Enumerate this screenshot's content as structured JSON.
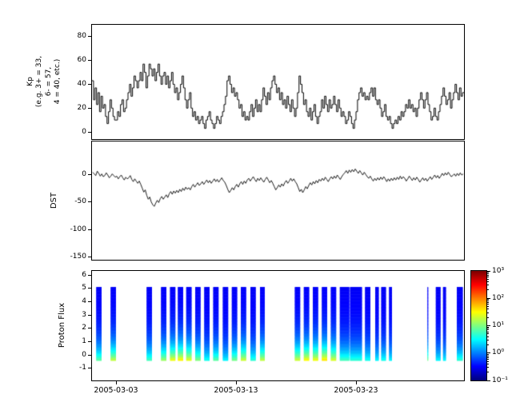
{
  "figure": {
    "background": "#ffffff",
    "line_color": "#000000"
  },
  "panels": {
    "kp": {
      "ylabel": "Kp\n(e.g. 3+ = 33,\n6- = 57,\n4 = 40, etc.)",
      "yticks": [
        80,
        60,
        40,
        20,
        0
      ],
      "ylim": [
        -6,
        90
      ]
    },
    "dst": {
      "ylabel": "DST",
      "yticks": [
        0,
        -50,
        -100,
        -150
      ],
      "ylim": [
        -155,
        60
      ]
    },
    "proton": {
      "ylabel": "Proton Flux",
      "yticks": [
        6,
        5,
        4,
        3,
        2,
        1,
        0,
        -1
      ],
      "ylim": [
        -1.9,
        6.3
      ]
    }
  },
  "xaxis": {
    "tick_days": [
      2,
      12,
      22
    ],
    "tick_labels": [
      "2005-03-03",
      "2005-03-13",
      "2005-03-23"
    ],
    "day_range": [
      0,
      31
    ],
    "epoch_label_style": "YYYY-MM-DD"
  },
  "colorbar": {
    "tick_exponents": [
      3,
      2,
      1,
      0,
      -1
    ],
    "tick_labels": [
      "10³",
      "10²",
      "10¹",
      "10⁰",
      "10⁻¹"
    ],
    "log_range": [
      -1,
      3
    ],
    "colormap": "jet"
  },
  "chart_data": [
    {
      "type": "line",
      "name": "Kp index",
      "style": "steps",
      "x_start_day": 0,
      "x_step_days": 0.125,
      "ylim": [
        -6,
        90
      ],
      "values": [
        43,
        27,
        37,
        23,
        33,
        17,
        30,
        20,
        23,
        13,
        7,
        17,
        27,
        20,
        13,
        10,
        10,
        17,
        13,
        23,
        27,
        17,
        20,
        27,
        33,
        40,
        30,
        37,
        47,
        43,
        37,
        43,
        50,
        43,
        57,
        50,
        37,
        47,
        57,
        53,
        47,
        53,
        43,
        50,
        57,
        47,
        40,
        47,
        50,
        40,
        47,
        37,
        43,
        50,
        40,
        33,
        37,
        27,
        33,
        40,
        47,
        37,
        27,
        20,
        27,
        33,
        20,
        13,
        17,
        10,
        13,
        7,
        10,
        13,
        7,
        3,
        10,
        13,
        17,
        10,
        7,
        3,
        7,
        13,
        10,
        7,
        13,
        17,
        23,
        30,
        43,
        47,
        40,
        33,
        37,
        30,
        33,
        27,
        20,
        23,
        13,
        17,
        10,
        13,
        10,
        17,
        23,
        13,
        20,
        27,
        17,
        23,
        17,
        27,
        37,
        30,
        23,
        33,
        27,
        37,
        43,
        47,
        40,
        33,
        37,
        27,
        33,
        23,
        27,
        20,
        30,
        23,
        17,
        27,
        20,
        13,
        20,
        33,
        47,
        40,
        33,
        23,
        27,
        17,
        13,
        20,
        10,
        17,
        23,
        13,
        7,
        13,
        17,
        27,
        20,
        30,
        23,
        17,
        27,
        20,
        23,
        30,
        23,
        17,
        27,
        20,
        13,
        17,
        13,
        7,
        10,
        17,
        13,
        7,
        3,
        10,
        17,
        27,
        33,
        37,
        30,
        33,
        27,
        30,
        27,
        33,
        37,
        30,
        37,
        27,
        23,
        27,
        20,
        13,
        17,
        23,
        13,
        10,
        13,
        7,
        3,
        7,
        10,
        7,
        13,
        10,
        17,
        13,
        17,
        23,
        20,
        27,
        20,
        23,
        17,
        20,
        13,
        20,
        27,
        33,
        27,
        20,
        27,
        33,
        23,
        17,
        10,
        13,
        20,
        13,
        10,
        17,
        23,
        30,
        37,
        30,
        23,
        27,
        33,
        20,
        27,
        33,
        40,
        33,
        27,
        37,
        30,
        33
      ]
    },
    {
      "type": "line",
      "name": "DST",
      "style": "line",
      "x_start_day": 0,
      "x_step_days": 0.125,
      "ylim": [
        -155,
        60
      ],
      "values": [
        4,
        1,
        -2,
        6,
        2,
        -3,
        1,
        -4,
        -2,
        3,
        -1,
        -6,
        -3,
        1,
        -2,
        -5,
        -3,
        -8,
        -4,
        -1,
        -6,
        -10,
        -5,
        -8,
        -6,
        -2,
        -9,
        -13,
        -8,
        -12,
        -16,
        -12,
        -18,
        -25,
        -32,
        -28,
        -38,
        -45,
        -41,
        -50,
        -55,
        -58,
        -52,
        -47,
        -51,
        -44,
        -40,
        -45,
        -41,
        -37,
        -42,
        -35,
        -31,
        -36,
        -30,
        -34,
        -29,
        -33,
        -27,
        -31,
        -25,
        -29,
        -23,
        -27,
        -24,
        -28,
        -22,
        -18,
        -23,
        -19,
        -15,
        -20,
        -17,
        -13,
        -18,
        -14,
        -10,
        -15,
        -11,
        -16,
        -12,
        -8,
        -13,
        -9,
        -14,
        -10,
        -6,
        -11,
        -14,
        -20,
        -27,
        -33,
        -29,
        -24,
        -28,
        -22,
        -18,
        -23,
        -17,
        -13,
        -18,
        -12,
        -16,
        -10,
        -7,
        -12,
        -8,
        -4,
        -9,
        -13,
        -7,
        -11,
        -6,
        -10,
        -14,
        -9,
        -5,
        -10,
        -15,
        -11,
        -16,
        -22,
        -28,
        -24,
        -19,
        -23,
        -17,
        -21,
        -15,
        -11,
        -16,
        -12,
        -7,
        -12,
        -8,
        -13,
        -17,
        -24,
        -31,
        -27,
        -33,
        -28,
        -22,
        -26,
        -20,
        -15,
        -19,
        -13,
        -17,
        -11,
        -15,
        -9,
        -12,
        -7,
        -11,
        -5,
        -9,
        -13,
        -8,
        -4,
        -8,
        -3,
        -7,
        -1,
        -5,
        -9,
        -4,
        0,
        3,
        7,
        2,
        8,
        4,
        9,
        5,
        10,
        6,
        2,
        7,
        3,
        -1,
        4,
        0,
        -4,
        -7,
        -3,
        -8,
        -12,
        -7,
        -11,
        -6,
        -10,
        -5,
        -9,
        -4,
        -8,
        -13,
        -8,
        -12,
        -7,
        -11,
        -6,
        -10,
        -5,
        -9,
        -3,
        -8,
        -4,
        -7,
        -12,
        -8,
        -3,
        -7,
        -11,
        -6,
        -10,
        -5,
        -9,
        -14,
        -10,
        -6,
        -11,
        -7,
        -12,
        -8,
        -4,
        -9,
        -5,
        -1,
        -6,
        -2,
        -7,
        -3,
        2,
        -2,
        3,
        -1,
        4,
        0,
        -4,
        -2,
        1,
        -3,
        2,
        -2,
        3,
        -1,
        1
      ]
    },
    {
      "type": "heatmap",
      "name": "Proton Flux",
      "color_scale": "jet",
      "log_flux_range": [
        -1,
        3
      ],
      "bar_y_min": -0.4,
      "bar_y_max": 5.1,
      "top_log_flux": -0.55,
      "decay_scale": 1.3,
      "bars": [
        {
          "t": 0.35,
          "w": 0.45,
          "b": 0.9
        },
        {
          "t": 1.55,
          "w": 0.45,
          "b": 1.3
        },
        {
          "t": 4.55,
          "w": 0.45,
          "b": 0.8
        },
        {
          "t": 5.75,
          "w": 0.45,
          "b": 1.15
        },
        {
          "t": 6.5,
          "w": 0.45,
          "b": 1.5
        },
        {
          "t": 7.15,
          "w": 0.45,
          "b": 1.6
        },
        {
          "t": 7.85,
          "w": 0.45,
          "b": 1.45
        },
        {
          "t": 8.6,
          "w": 0.45,
          "b": 1.05
        },
        {
          "t": 9.35,
          "w": 0.45,
          "b": 0.6
        },
        {
          "t": 10.1,
          "w": 0.45,
          "b": 0.9
        },
        {
          "t": 10.9,
          "w": 0.45,
          "b": 0.5
        },
        {
          "t": 11.65,
          "w": 0.45,
          "b": 1.0
        },
        {
          "t": 12.4,
          "w": 0.45,
          "b": 1.35
        },
        {
          "t": 13.2,
          "w": 0.45,
          "b": 0.7
        },
        {
          "t": 14.0,
          "w": 0.4,
          "b": 1.3
        },
        {
          "t": 16.9,
          "w": 0.45,
          "b": 1.35
        },
        {
          "t": 17.65,
          "w": 0.45,
          "b": 1.55
        },
        {
          "t": 18.4,
          "w": 0.45,
          "b": 1.5
        },
        {
          "t": 19.15,
          "w": 0.45,
          "b": 1.65
        },
        {
          "t": 19.9,
          "w": 0.45,
          "b": 1.4
        },
        {
          "t": 20.65,
          "w": 0.8,
          "b": 0.8
        },
        {
          "t": 21.5,
          "w": 1.0,
          "b": 0.7
        },
        {
          "t": 22.75,
          "w": 0.45,
          "b": 0.6
        },
        {
          "t": 23.6,
          "w": 0.3,
          "b": 0.5
        },
        {
          "t": 24.1,
          "w": 0.4,
          "b": 0.6
        },
        {
          "t": 24.75,
          "w": 0.25,
          "b": 0.5
        },
        {
          "t": 27.95,
          "w": 0.07,
          "b": 1.0
        },
        {
          "t": 28.65,
          "w": 0.4,
          "b": 0.5
        },
        {
          "t": 29.25,
          "w": 0.25,
          "b": 0.5
        },
        {
          "t": 30.4,
          "w": 0.5,
          "b": 0.7
        }
      ]
    }
  ]
}
